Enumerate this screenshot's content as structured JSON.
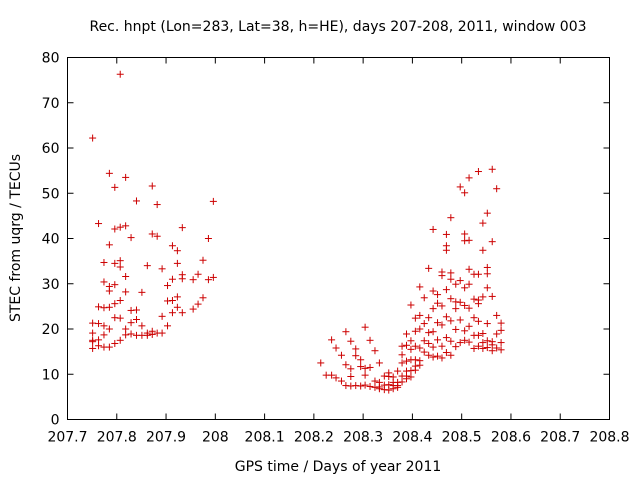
{
  "chart_data": {
    "type": "scatter",
    "title": "Rec. hnpt (Lon=283, Lat=38, h=HE), days 207-208, 2011, window 003",
    "xlabel": "GPS time / Days of year 2011",
    "ylabel": "STEC from uqrg / TECUs",
    "xlim": [
      207.7,
      208.8
    ],
    "ylim": [
      0,
      80
    ],
    "x_ticks": [
      207.7,
      207.8,
      207.9,
      208.0,
      208.1,
      208.2,
      208.3,
      208.4,
      208.5,
      208.6,
      208.7,
      208.8
    ],
    "x_tick_labels": [
      "207.7",
      "207.8",
      "207.9",
      "208",
      "208.1",
      "208.2",
      "208.3",
      "208.4",
      "208.5",
      "208.6",
      "208.7",
      "208.8"
    ],
    "y_ticks": [
      0,
      10,
      20,
      30,
      40,
      50,
      60,
      70,
      80
    ],
    "y_tick_labels": [
      "0",
      "10",
      "20",
      "30",
      "40",
      "50",
      "60",
      "70",
      "80"
    ],
    "grid": false,
    "marker": "+",
    "marker_color": "#cc0000",
    "series": [
      {
        "points": [
          [
            207.751,
            62.2
          ],
          [
            207.751,
            21.3
          ],
          [
            207.751,
            19.1
          ],
          [
            207.751,
            17.5
          ],
          [
            207.751,
            17.2
          ],
          [
            207.751,
            15.7
          ],
          [
            207.763,
            43.3
          ],
          [
            207.763,
            24.9
          ],
          [
            207.763,
            21.2
          ],
          [
            207.763,
            17.6
          ],
          [
            207.763,
            16.3
          ],
          [
            207.774,
            34.7
          ],
          [
            207.774,
            30.4
          ],
          [
            207.774,
            24.7
          ],
          [
            207.774,
            20.7
          ],
          [
            207.774,
            18.7
          ],
          [
            207.774,
            16.0
          ],
          [
            207.785,
            54.4
          ],
          [
            207.785,
            38.6
          ],
          [
            207.785,
            29.4
          ],
          [
            207.785,
            28.4
          ],
          [
            207.785,
            24.8
          ],
          [
            207.785,
            20.0
          ],
          [
            207.785,
            16.0
          ],
          [
            207.796,
            51.3
          ],
          [
            207.796,
            42.1
          ],
          [
            207.796,
            34.5
          ],
          [
            207.796,
            29.8
          ],
          [
            207.796,
            25.6
          ],
          [
            207.796,
            22.5
          ],
          [
            207.796,
            16.8
          ],
          [
            207.807,
            76.3
          ],
          [
            207.807,
            42.5
          ],
          [
            207.807,
            35.1
          ],
          [
            207.807,
            33.7
          ],
          [
            207.807,
            26.3
          ],
          [
            207.807,
            22.4
          ],
          [
            207.807,
            17.5
          ],
          [
            207.818,
            53.5
          ],
          [
            207.818,
            42.8
          ],
          [
            207.818,
            31.6
          ],
          [
            207.818,
            28.2
          ],
          [
            207.818,
            20.0
          ],
          [
            207.818,
            18.7
          ],
          [
            207.829,
            40.2
          ],
          [
            207.829,
            24.1
          ],
          [
            207.829,
            21.4
          ],
          [
            207.829,
            18.9
          ],
          [
            207.84,
            48.3
          ],
          [
            207.84,
            24.2
          ],
          [
            207.84,
            22.1
          ],
          [
            207.84,
            18.6
          ],
          [
            207.851,
            28.1
          ],
          [
            207.851,
            20.7
          ],
          [
            207.851,
            18.6
          ],
          [
            207.862,
            34.0
          ],
          [
            207.862,
            19.1
          ],
          [
            207.862,
            18.6
          ],
          [
            207.872,
            51.6
          ],
          [
            207.872,
            41.0
          ],
          [
            207.872,
            19.5
          ],
          [
            207.872,
            18.8
          ],
          [
            207.882,
            47.5
          ],
          [
            207.882,
            40.5
          ],
          [
            207.882,
            19.1
          ],
          [
            207.892,
            33.3
          ],
          [
            207.892,
            22.8
          ],
          [
            207.892,
            19.1
          ],
          [
            207.903,
            29.6
          ],
          [
            207.903,
            26.2
          ],
          [
            207.903,
            20.7
          ],
          [
            207.913,
            38.4
          ],
          [
            207.913,
            31.0
          ],
          [
            207.913,
            26.3
          ],
          [
            207.913,
            23.6
          ],
          [
            207.923,
            37.3
          ],
          [
            207.923,
            34.5
          ],
          [
            207.923,
            27.1
          ],
          [
            207.923,
            24.8
          ],
          [
            207.933,
            42.4
          ],
          [
            207.933,
            32.0
          ],
          [
            207.933,
            31.1
          ],
          [
            207.933,
            23.6
          ],
          [
            207.955,
            30.9
          ],
          [
            207.955,
            24.4
          ],
          [
            207.965,
            32.1
          ],
          [
            207.965,
            25.5
          ],
          [
            207.975,
            35.2
          ],
          [
            207.975,
            26.9
          ],
          [
            207.986,
            40.0
          ],
          [
            207.986,
            30.9
          ],
          [
            207.996,
            48.2
          ],
          [
            207.996,
            31.4
          ],
          [
            208.214,
            12.5
          ],
          [
            208.225,
            9.8
          ],
          [
            208.236,
            17.6
          ],
          [
            208.236,
            9.8
          ],
          [
            208.245,
            15.8
          ],
          [
            208.245,
            9.2
          ],
          [
            208.256,
            14.2
          ],
          [
            208.256,
            8.5
          ],
          [
            208.265,
            19.4
          ],
          [
            208.265,
            12.1
          ],
          [
            208.265,
            7.5
          ],
          [
            208.275,
            17.3
          ],
          [
            208.275,
            11.2
          ],
          [
            208.275,
            9.5
          ],
          [
            208.275,
            7.4
          ],
          [
            208.285,
            15.6
          ],
          [
            208.285,
            14.1
          ],
          [
            208.285,
            7.5
          ],
          [
            208.295,
            13.2
          ],
          [
            208.295,
            11.7
          ],
          [
            208.295,
            7.4
          ],
          [
            208.304,
            20.4
          ],
          [
            208.304,
            11.3
          ],
          [
            208.304,
            9.8
          ],
          [
            208.304,
            7.6
          ],
          [
            208.314,
            17.5
          ],
          [
            208.314,
            11.5
          ],
          [
            208.314,
            7.3
          ],
          [
            208.324,
            15.2
          ],
          [
            208.324,
            8.5
          ],
          [
            208.324,
            7.1
          ],
          [
            208.333,
            12.5
          ],
          [
            208.333,
            8.2
          ],
          [
            208.333,
            7.2
          ],
          [
            208.333,
            6.8
          ],
          [
            208.343,
            9.6
          ],
          [
            208.343,
            7.6
          ],
          [
            208.343,
            6.6
          ],
          [
            208.352,
            10.3
          ],
          [
            208.352,
            9.5
          ],
          [
            208.352,
            7.7
          ],
          [
            208.352,
            6.5
          ],
          [
            208.361,
            9.4
          ],
          [
            208.361,
            8.2
          ],
          [
            208.361,
            7.5
          ],
          [
            208.361,
            6.8
          ],
          [
            208.37,
            10.7
          ],
          [
            208.37,
            8.2
          ],
          [
            208.37,
            7.5
          ],
          [
            208.37,
            7.1
          ],
          [
            208.379,
            16.2
          ],
          [
            208.379,
            14.3
          ],
          [
            208.379,
            12.5
          ],
          [
            208.379,
            9.6
          ],
          [
            208.379,
            8.3
          ],
          [
            208.388,
            18.9
          ],
          [
            208.388,
            16.4
          ],
          [
            208.388,
            12.9
          ],
          [
            208.388,
            10.7
          ],
          [
            208.388,
            9.6
          ],
          [
            208.388,
            9.0
          ],
          [
            208.397,
            25.3
          ],
          [
            208.397,
            17.4
          ],
          [
            208.397,
            15.5
          ],
          [
            208.397,
            13.2
          ],
          [
            208.397,
            10.8
          ],
          [
            208.397,
            9.4
          ],
          [
            208.406,
            22.4
          ],
          [
            208.406,
            19.5
          ],
          [
            208.406,
            16.2
          ],
          [
            208.406,
            13.2
          ],
          [
            208.406,
            11.8
          ],
          [
            208.406,
            10.9
          ],
          [
            208.415,
            29.3
          ],
          [
            208.415,
            23.0
          ],
          [
            208.415,
            20.0
          ],
          [
            208.415,
            15.8
          ],
          [
            208.415,
            13.0
          ],
          [
            208.415,
            12.0
          ],
          [
            208.424,
            26.9
          ],
          [
            208.424,
            21.2
          ],
          [
            208.424,
            17.4
          ],
          [
            208.424,
            14.9
          ],
          [
            208.433,
            33.4
          ],
          [
            208.433,
            22.5
          ],
          [
            208.433,
            19.2
          ],
          [
            208.433,
            16.8
          ],
          [
            208.433,
            14.2
          ],
          [
            208.442,
            42.0
          ],
          [
            208.442,
            28.4
          ],
          [
            208.442,
            24.5
          ],
          [
            208.442,
            19.4
          ],
          [
            208.442,
            16.0
          ],
          [
            208.442,
            13.8
          ],
          [
            208.451,
            27.6
          ],
          [
            208.451,
            25.7
          ],
          [
            208.451,
            21.4
          ],
          [
            208.451,
            17.6
          ],
          [
            208.451,
            14.0
          ],
          [
            208.46,
            32.6
          ],
          [
            208.46,
            31.8
          ],
          [
            208.46,
            25.1
          ],
          [
            208.46,
            20.9
          ],
          [
            208.46,
            16.2
          ],
          [
            208.46,
            13.6
          ],
          [
            208.469,
            40.9
          ],
          [
            208.469,
            38.4
          ],
          [
            208.469,
            37.4
          ],
          [
            208.469,
            28.7
          ],
          [
            208.469,
            22.7
          ],
          [
            208.469,
            18.1
          ],
          [
            208.469,
            14.8
          ],
          [
            208.478,
            44.6
          ],
          [
            208.478,
            32.4
          ],
          [
            208.478,
            31.0
          ],
          [
            208.478,
            26.7
          ],
          [
            208.478,
            21.8
          ],
          [
            208.478,
            17.3
          ],
          [
            208.478,
            14.2
          ],
          [
            208.488,
            29.9
          ],
          [
            208.488,
            26.0
          ],
          [
            208.488,
            24.5
          ],
          [
            208.488,
            19.9
          ],
          [
            208.488,
            16.1
          ],
          [
            208.497,
            51.4
          ],
          [
            208.497,
            30.7
          ],
          [
            208.497,
            25.9
          ],
          [
            208.497,
            22.0
          ],
          [
            208.497,
            17.0
          ],
          [
            208.506,
            50.1
          ],
          [
            208.506,
            41.0
          ],
          [
            208.506,
            39.5
          ],
          [
            208.506,
            29.1
          ],
          [
            208.506,
            25.2
          ],
          [
            208.506,
            19.6
          ],
          [
            208.506,
            17.5
          ],
          [
            208.515,
            53.4
          ],
          [
            208.515,
            39.6
          ],
          [
            208.515,
            33.2
          ],
          [
            208.515,
            29.9
          ],
          [
            208.515,
            24.6
          ],
          [
            208.515,
            20.6
          ],
          [
            208.515,
            17.1
          ],
          [
            208.525,
            32.1
          ],
          [
            208.525,
            26.6
          ],
          [
            208.525,
            22.5
          ],
          [
            208.525,
            18.6
          ],
          [
            208.525,
            15.7
          ],
          [
            208.534,
            54.8
          ],
          [
            208.534,
            32.1
          ],
          [
            208.534,
            26.4
          ],
          [
            208.534,
            25.6
          ],
          [
            208.534,
            21.7
          ],
          [
            208.534,
            18.6
          ],
          [
            208.534,
            16.2
          ],
          [
            208.543,
            43.4
          ],
          [
            208.543,
            37.4
          ],
          [
            208.543,
            27.1
          ],
          [
            208.543,
            19.0
          ],
          [
            208.543,
            17.0
          ],
          [
            208.543,
            15.7
          ],
          [
            208.552,
            45.6
          ],
          [
            208.552,
            33.6
          ],
          [
            208.552,
            32.2
          ],
          [
            208.552,
            29.1
          ],
          [
            208.552,
            21.2
          ],
          [
            208.552,
            17.4
          ],
          [
            208.552,
            15.9
          ],
          [
            208.562,
            55.3
          ],
          [
            208.562,
            39.3
          ],
          [
            208.562,
            27.2
          ],
          [
            208.562,
            17.2
          ],
          [
            208.562,
            16.5
          ],
          [
            208.562,
            15.2
          ],
          [
            208.571,
            51.0
          ],
          [
            208.571,
            23.0
          ],
          [
            208.571,
            18.9
          ],
          [
            208.571,
            15.8
          ],
          [
            208.58,
            21.3
          ],
          [
            208.58,
            19.7
          ],
          [
            208.58,
            17.0
          ],
          [
            208.58,
            15.4
          ]
        ]
      }
    ]
  }
}
